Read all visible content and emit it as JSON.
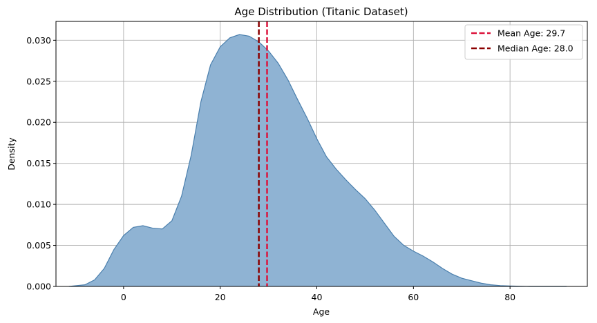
{
  "chart_data": {
    "type": "area",
    "title": "Age Distribution (Titanic Dataset)",
    "xlabel": "Age",
    "ylabel": "Density",
    "xlim": [
      -14,
      96
    ],
    "ylim": [
      0,
      0.0323
    ],
    "xticks": [
      0,
      20,
      40,
      60,
      80
    ],
    "xtick_labels": [
      "0",
      "20",
      "40",
      "60",
      "80"
    ],
    "yticks": [
      0,
      0.005,
      0.01,
      0.015,
      0.02,
      0.025,
      0.03
    ],
    "ytick_labels": [
      "0.000",
      "0.005",
      "0.010",
      "0.015",
      "0.020",
      "0.025",
      "0.030"
    ],
    "grid": true,
    "legend_position": "top-right",
    "density_series": {
      "fill_color": "#8fb3d3",
      "line_color": "#4a7fad",
      "x": [
        -11.3,
        -8,
        -6,
        -4,
        -2,
        0,
        2,
        4,
        6,
        8,
        10,
        12,
        14,
        16,
        18,
        20,
        22,
        24,
        26,
        28,
        30,
        32,
        34,
        36,
        38,
        40,
        42,
        44,
        46,
        48,
        50,
        52,
        54,
        56,
        58,
        60,
        62,
        64,
        66,
        68,
        70,
        72,
        74,
        76,
        78,
        80,
        82,
        84,
        86,
        88,
        91.7
      ],
      "y": [
        0.0,
        0.0002,
        0.0008,
        0.0022,
        0.0045,
        0.0062,
        0.0072,
        0.0074,
        0.0071,
        0.007,
        0.008,
        0.011,
        0.016,
        0.0225,
        0.027,
        0.0292,
        0.0303,
        0.0307,
        0.0305,
        0.0298,
        0.0287,
        0.0272,
        0.0252,
        0.0228,
        0.0205,
        0.018,
        0.0158,
        0.0143,
        0.013,
        0.0118,
        0.0107,
        0.0093,
        0.0077,
        0.0061,
        0.005,
        0.0043,
        0.0037,
        0.003,
        0.0022,
        0.0015,
        0.001,
        0.0007,
        0.0004,
        0.0002,
        0.0001,
        5e-05,
        2e-05,
        0.0,
        0.0,
        0.0,
        0.0
      ]
    },
    "reference_lines": [
      {
        "name": "Mean Age: 29.7",
        "x": 29.7,
        "color": "#dc143c",
        "style": "dashed"
      },
      {
        "name": "Median Age: 28.0",
        "x": 28.0,
        "color": "#8b0000",
        "style": "dashed"
      }
    ]
  }
}
